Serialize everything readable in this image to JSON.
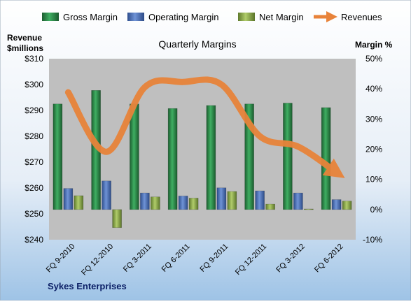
{
  "colors": {
    "gross": "#2e8b4a",
    "operating": "#4f73b8",
    "net": "#8fae4a",
    "revenues": "#e8833a",
    "plot_bg": "#bfbfbf",
    "background_top": "#ffffff",
    "background_bottom": "#9ec3e6"
  },
  "chart_data": {
    "type": "bar",
    "title": "Quarterly Margins",
    "left_axis_label_line1": "Revenue",
    "left_axis_label_line2": "$millions",
    "right_axis_label": "Margin %",
    "footer": "Sykes Enterprises",
    "categories": [
      "FQ 9-2010",
      "FQ 12-2010",
      "FQ 3-2011",
      "FQ 6-2011",
      "FQ 9-2011",
      "FQ 12-2011",
      "FQ 3-2012",
      "FQ 6-2012"
    ],
    "left_ylim": [
      240,
      310
    ],
    "left_ticks": [
      "$240",
      "$250",
      "$260",
      "$270",
      "$280",
      "$290",
      "$300",
      "$310"
    ],
    "right_ylim": [
      -10,
      50
    ],
    "right_ticks": [
      "-10%",
      "0%",
      "10%",
      "20%",
      "30%",
      "40%",
      "50%"
    ],
    "legend": [
      "Gross Margin",
      "Operating Margin",
      "Net Margin",
      "Revenues"
    ],
    "series": [
      {
        "name": "Gross Margin",
        "axis": "right",
        "type": "bar",
        "values": [
          35.0,
          39.5,
          35.0,
          33.5,
          34.5,
          35.0,
          35.3,
          33.8
        ]
      },
      {
        "name": "Operating Margin",
        "axis": "right",
        "type": "bar",
        "values": [
          7.0,
          9.5,
          5.5,
          4.5,
          7.2,
          6.2,
          5.5,
          3.3
        ]
      },
      {
        "name": "Net Margin",
        "axis": "right",
        "type": "bar",
        "values": [
          4.6,
          -6.0,
          4.2,
          3.8,
          6.0,
          1.8,
          0.2,
          2.8
        ]
      },
      {
        "name": "Revenues",
        "axis": "left",
        "type": "line",
        "values": [
          297,
          274,
          299,
          301,
          300,
          280,
          276,
          266
        ]
      }
    ]
  }
}
